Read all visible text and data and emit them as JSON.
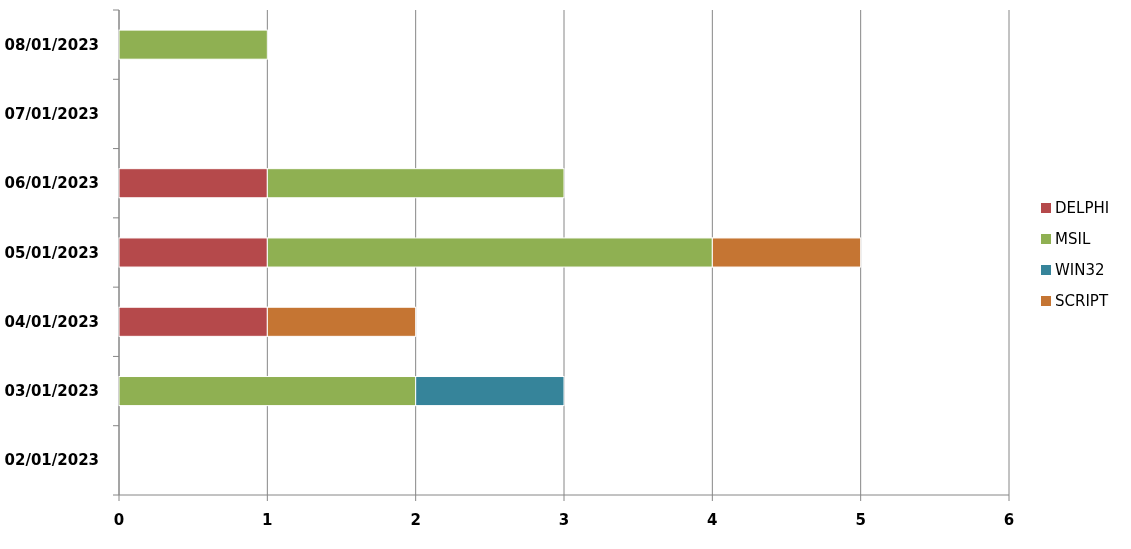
{
  "chart_data": {
    "type": "bar",
    "orientation": "horizontal",
    "stacked": true,
    "categories": [
      "08/01/2023",
      "07/01/2023",
      "06/01/2023",
      "05/01/2023",
      "04/01/2023",
      "03/01/2023",
      "02/01/2023"
    ],
    "series": [
      {
        "name": "DELPHI",
        "color": "#b5494b",
        "values": [
          0,
          0,
          1,
          1,
          1,
          0,
          0
        ]
      },
      {
        "name": "MSIL",
        "color": "#8fb052",
        "values": [
          1,
          0,
          2,
          3,
          0,
          2,
          0
        ]
      },
      {
        "name": "WIN32",
        "color": "#36849a",
        "values": [
          0,
          0,
          0,
          0,
          0,
          1,
          0
        ]
      },
      {
        "name": "SCRIPT",
        "color": "#c57533",
        "values": [
          0,
          0,
          0,
          1,
          1,
          0,
          0
        ]
      }
    ],
    "xlim": [
      0,
      6
    ],
    "xticks": [
      0,
      1,
      2,
      3,
      4,
      5,
      6
    ],
    "grid": "x",
    "legend": "right"
  }
}
